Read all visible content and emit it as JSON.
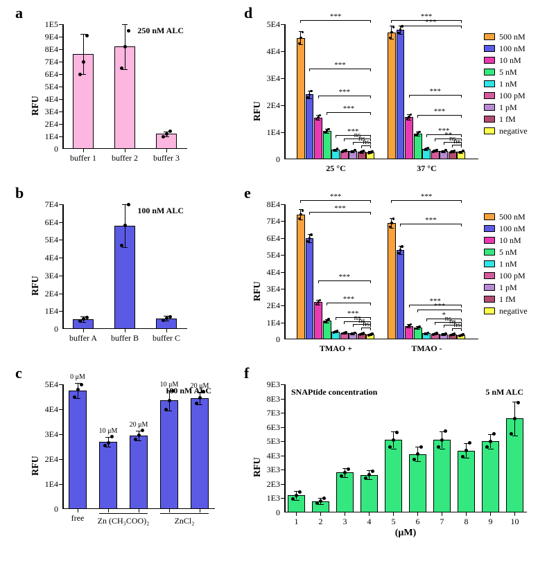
{
  "colors": {
    "pink": "#fcb6e0",
    "blue": "#5a5ae5",
    "green": "#35e77f",
    "orange": "#f7a23b",
    "magenta": "#e83ab1",
    "cyan": "#2fe6e7",
    "darkpink": "#d45a9c",
    "purple": "#b78bd4",
    "darkred": "#b24b72",
    "yellow": "#ffff4d",
    "black": "#000000",
    "white": "#ffffff"
  },
  "global": {
    "ylabel": "RFU"
  },
  "a": {
    "label": "a",
    "title": "250 nM ALC",
    "categories": [
      "buffer 1",
      "buffer 2",
      "buffer 3"
    ],
    "values": [
      76000,
      82000,
      12000
    ],
    "err": [
      16000,
      18000,
      2000
    ],
    "scatter_y": [
      [
        60000,
        70000,
        91000
      ],
      [
        65000,
        82000,
        95000
      ],
      [
        10000,
        12000,
        14000
      ]
    ],
    "yticks": [
      10000,
      20000,
      30000,
      40000,
      50000,
      60000,
      70000,
      80000,
      90000,
      100000
    ],
    "ytick_labels": [
      "1E4",
      "2E4",
      "3E4",
      "4E4",
      "5E4",
      "6E4",
      "7E4",
      "8E4",
      "9E4",
      "1E5"
    ],
    "color_key": "pink",
    "bar_width": 0.5
  },
  "b": {
    "label": "b",
    "title": "100 nM ALC",
    "categories": [
      "buffer A",
      "buffer B",
      "buffer C"
    ],
    "values": [
      5500,
      58000,
      6000
    ],
    "err": [
      1500,
      12000,
      1500
    ],
    "scatter_y": [
      [
        4500,
        5500,
        6500
      ],
      [
        47000,
        58000,
        70000
      ],
      [
        5000,
        6000,
        7000
      ]
    ],
    "yticks": [
      10000,
      20000,
      30000,
      40000,
      50000,
      60000,
      70000
    ],
    "ytick_labels": [
      "1E4",
      "2E4",
      "3E4",
      "4E4",
      "5E4",
      "6E4",
      "7E4"
    ],
    "color_key": "blue",
    "bar_width": 0.5
  },
  "c": {
    "label": "c",
    "title": "100 nM ALC",
    "categories": [
      "free",
      "",
      "",
      "",
      ""
    ],
    "xtick_labels": [
      "free",
      "10 μM",
      "20 μM",
      "10 μM",
      "20 μM"
    ],
    "xtick_label_small": [
      null,
      null,
      null,
      null,
      null
    ],
    "group_labels": [
      "Zn (CH₃COO)₂",
      "ZnCl₂"
    ],
    "bar_top_labels": [
      "0 μM",
      "10 μM",
      "20 μM",
      "10 μM",
      "20 μM"
    ],
    "values": [
      47500,
      27000,
      29500,
      43500,
      44500
    ],
    "err": [
      3000,
      2000,
      2000,
      4000,
      2500
    ],
    "scatter_y": [
      [
        45000,
        48000,
        50000
      ],
      [
        25500,
        26500,
        29000
      ],
      [
        28000,
        29500,
        31500
      ],
      [
        40000,
        43500,
        47500
      ],
      [
        42500,
        44500,
        47000
      ]
    ],
    "yticks": [
      10000,
      20000,
      30000,
      40000,
      50000
    ],
    "ytick_labels": [
      "1E4",
      "2E4",
      "3E4",
      "4E4",
      "5E4"
    ],
    "color_key": "blue",
    "bar_width": 0.6
  },
  "d": {
    "label": "d",
    "groups": [
      "25 °C",
      "37 °C"
    ],
    "series_labels": [
      "500 nM",
      "100 nM",
      "10 nM",
      "5 nM",
      "1 nM",
      "100 pM",
      "1 pM",
      "1 fM",
      "negative"
    ],
    "series_color_keys": [
      "orange",
      "blue",
      "magenta",
      "green",
      "cyan",
      "darkpink",
      "purple",
      "darkred",
      "yellow"
    ],
    "values": {
      "g1": [
        45000,
        24000,
        15500,
        10500,
        3500,
        3200,
        3000,
        2800,
        2600
      ],
      "g2": [
        47000,
        48000,
        15700,
        9500,
        3800,
        3200,
        3000,
        2900,
        2700
      ]
    },
    "err": {
      "g1": [
        2500,
        1500,
        1000,
        800,
        400,
        400,
        400,
        400,
        400
      ],
      "g2": [
        2500,
        1500,
        1000,
        800,
        400,
        400,
        400,
        400,
        400
      ]
    },
    "yticks": [
      10000,
      20000,
      30000,
      40000,
      50000
    ],
    "ytick_labels": [
      "1E4",
      "2E4",
      "3E4",
      "4E4",
      "5E4"
    ],
    "sig": {
      "g1": [
        "***",
        "***",
        "***",
        "***",
        "ns",
        "ns",
        "ns"
      ],
      "g2": [
        "***",
        "***",
        "***",
        "***",
        "**",
        "ns",
        "ns"
      ]
    }
  },
  "e": {
    "label": "e",
    "groups": [
      "TMAO +",
      "TMAO -"
    ],
    "series_labels": [
      "500 nM",
      "100 nM",
      "10 nM",
      "5 nM",
      "1 nM",
      "100 pM",
      "1 pM",
      "1 fM",
      "negative"
    ],
    "series_color_keys": [
      "orange",
      "blue",
      "magenta",
      "green",
      "cyan",
      "darkpink",
      "purple",
      "darkred",
      "yellow"
    ],
    "values": {
      "g1": [
        74000,
        60000,
        22000,
        11000,
        4500,
        3800,
        3500,
        3200,
        2800
      ],
      "g2": [
        69000,
        53000,
        8000,
        7000,
        3500,
        3200,
        3000,
        2800,
        2500
      ]
    },
    "err": {
      "g1": [
        3000,
        2500,
        1500,
        1000,
        500,
        500,
        500,
        500,
        500
      ],
      "g2": [
        3000,
        2500,
        1000,
        800,
        500,
        500,
        500,
        500,
        500
      ]
    },
    "yticks": [
      10000,
      20000,
      30000,
      40000,
      50000,
      60000,
      70000,
      80000
    ],
    "ytick_labels": [
      "1E4",
      "2E4",
      "3E4",
      "4E4",
      "5E4",
      "6E4",
      "7E4",
      "8E4"
    ],
    "sig": {
      "g1": [
        "***",
        "***",
        "***",
        "***",
        "ns",
        "ns",
        "ns"
      ],
      "g2": [
        "***",
        "***",
        "***",
        "*",
        "ns",
        "ns",
        "ns"
      ]
    }
  },
  "f": {
    "label": "f",
    "title_left": "SNAPtide concentration",
    "title_right": "5 nM ALC",
    "xlabel": "(μM)",
    "categories": [
      "1",
      "2",
      "3",
      "4",
      "5",
      "6",
      "7",
      "8",
      "9",
      "10"
    ],
    "values": [
      1200,
      800,
      2800,
      2650,
      5100,
      4100,
      5100,
      4350,
      5000,
      6600
    ],
    "err": [
      300,
      200,
      300,
      300,
      600,
      500,
      600,
      500,
      500,
      1200
    ],
    "scatter_y": [
      [
        950,
        1200,
        1450
      ],
      [
        650,
        800,
        1000
      ],
      [
        2550,
        2800,
        3050
      ],
      [
        2400,
        2650,
        2900
      ],
      [
        4600,
        5100,
        5600
      ],
      [
        3700,
        4100,
        4600
      ],
      [
        4600,
        5100,
        5700
      ],
      [
        3900,
        4350,
        4900
      ],
      [
        4600,
        5000,
        5500
      ],
      [
        5500,
        6600,
        7700
      ]
    ],
    "yticks": [
      1000,
      2000,
      3000,
      4000,
      5000,
      6000,
      7000,
      8000,
      9000
    ],
    "ytick_labels": [
      "1E3",
      "2E3",
      "3E3",
      "4E3",
      "5E3",
      "6E3",
      "7E3",
      "8E3",
      "9E3"
    ],
    "color_key": "green",
    "bar_width": 0.7
  }
}
